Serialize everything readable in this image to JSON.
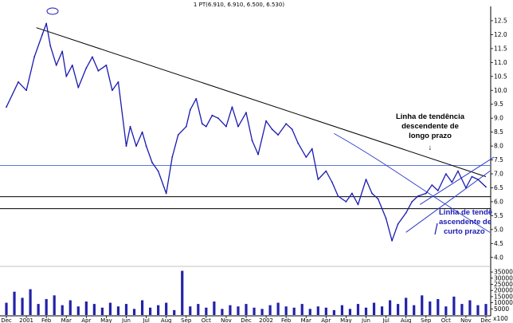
{
  "header": {
    "title": "1 PT(6.910, 6.910, 6.500, 6.530)"
  },
  "chart_data": {
    "type": "line",
    "price_axis": {
      "ylim": [
        3.85,
        12.9
      ],
      "ticks": [
        4.0,
        4.5,
        5.0,
        5.5,
        6.0,
        6.5,
        7.0,
        7.5,
        8.0,
        8.5,
        9.0,
        9.5,
        10.0,
        10.5,
        11.0,
        11.5,
        12.0,
        12.5
      ],
      "tick_labels": [
        "4.0",
        "4.5",
        "5.0",
        "5.5",
        "6.0",
        "6.5",
        "7.0",
        "7.5",
        "8.0",
        "8.5",
        "9.0",
        "9.5",
        "10.0",
        "10.5",
        "11.0",
        "11.5",
        "12.0",
        "12.5"
      ]
    },
    "volume_axis": {
      "ylim": [
        0,
        37000
      ],
      "ticks": [
        5000,
        10000,
        15000,
        20000,
        25000,
        30000,
        35000
      ],
      "tick_labels": [
        "5000",
        "10000",
        "15000",
        "20000",
        "25000",
        "30000",
        "35000"
      ],
      "unit_label": "x100"
    },
    "x_axis": {
      "months": [
        "Dec",
        "2001",
        "Feb",
        "Mar",
        "Apr",
        "May",
        "Jun",
        "Jul",
        "Aug",
        "Sep",
        "Oct",
        "Nov",
        "Dec",
        "2002",
        "Feb",
        "Mar",
        "Apr",
        "May",
        "Jun",
        "Jul",
        "Aug",
        "Sep",
        "Oct",
        "Nov",
        "Dec"
      ]
    },
    "price_series": {
      "x": [
        0.0,
        0.6,
        1.0,
        1.4,
        1.8,
        2.0,
        2.2,
        2.5,
        2.8,
        3.0,
        3.3,
        3.6,
        4.0,
        4.3,
        4.6,
        5.0,
        5.3,
        5.6,
        6.0,
        6.2,
        6.5,
        6.8,
        7.0,
        7.3,
        7.6,
        8.0,
        8.3,
        8.6,
        9.0,
        9.2,
        9.5,
        9.8,
        10.0,
        10.3,
        10.6,
        11.0,
        11.3,
        11.6,
        12.0,
        12.3,
        12.6,
        13.0,
        13.3,
        13.6,
        14.0,
        14.3,
        14.6,
        15.0,
        15.3,
        15.6,
        16.0,
        16.3,
        16.6,
        17.0,
        17.3,
        17.6,
        18.0,
        18.3,
        18.6,
        19.0,
        19.3,
        19.6,
        20.0,
        20.3,
        20.6,
        21.0,
        21.3,
        21.6,
        22.0,
        22.3,
        22.6,
        23.0,
        23.3,
        23.6,
        24.0
      ],
      "y": [
        9.4,
        10.3,
        10.0,
        11.2,
        12.0,
        12.4,
        11.6,
        10.9,
        11.4,
        10.5,
        10.9,
        10.1,
        10.8,
        11.2,
        10.7,
        10.9,
        10.0,
        10.3,
        8.0,
        8.7,
        8.0,
        8.5,
        8.0,
        7.4,
        7.1,
        6.3,
        7.6,
        8.4,
        8.7,
        9.3,
        9.7,
        8.8,
        8.7,
        9.1,
        9.0,
        8.7,
        9.4,
        8.7,
        9.2,
        8.2,
        7.7,
        8.9,
        8.6,
        8.4,
        8.8,
        8.6,
        8.1,
        7.6,
        7.9,
        6.8,
        7.1,
        6.7,
        6.2,
        6.0,
        6.3,
        5.9,
        6.8,
        6.3,
        6.1,
        5.4,
        4.6,
        5.2,
        5.6,
        6.0,
        6.2,
        6.3,
        6.6,
        6.4,
        7.0,
        6.7,
        7.1,
        6.5,
        6.9,
        6.8,
        6.53
      ]
    },
    "volume_series": {
      "x": [
        0,
        0.4,
        0.8,
        1.2,
        1.6,
        2.0,
        2.4,
        2.8,
        3.2,
        3.6,
        4.0,
        4.4,
        4.8,
        5.2,
        5.6,
        6.0,
        6.4,
        6.8,
        7.2,
        7.6,
        8.0,
        8.4,
        8.8,
        9.2,
        9.6,
        10.0,
        10.4,
        10.8,
        11.2,
        11.6,
        12.0,
        12.4,
        12.8,
        13.2,
        13.6,
        14.0,
        14.4,
        14.8,
        15.2,
        15.6,
        16.0,
        16.4,
        16.8,
        17.2,
        17.6,
        18.0,
        18.4,
        18.8,
        19.2,
        19.6,
        20.0,
        20.4,
        20.8,
        21.2,
        21.6,
        22.0,
        22.4,
        22.8,
        23.2,
        23.6,
        24.0
      ],
      "values": [
        10000,
        19000,
        14000,
        21000,
        9000,
        13000,
        16000,
        8000,
        12000,
        7000,
        11000,
        9000,
        6000,
        10000,
        7000,
        9000,
        5000,
        12000,
        6000,
        8000,
        10000,
        4000,
        36000,
        7000,
        9000,
        6000,
        11000,
        5000,
        8000,
        7000,
        9000,
        6000,
        5000,
        8000,
        10000,
        7000,
        6000,
        9000,
        5000,
        7000,
        6000,
        4000,
        8000,
        5000,
        9000,
        6000,
        10000,
        7000,
        12000,
        9000,
        14000,
        8000,
        16000,
        11000,
        13000,
        7000,
        15000,
        9000,
        12000,
        8000,
        9000
      ]
    },
    "annotations": [
      {
        "name": "long-term-label",
        "lines": [
          "Linha de tendência",
          "descendente de",
          "longo prazo"
        ],
        "arrow": "↓",
        "color": "#000000"
      },
      {
        "name": "short-term-label",
        "lines": [
          "Linha de tendê",
          "ascendente de",
          "curto prazo"
        ],
        "color": "#1a1ab0"
      }
    ],
    "long_trendline": {
      "x": [
        1.5,
        24.0
      ],
      "y": [
        12.25,
        6.9
      ]
    },
    "short_channel": {
      "lower": {
        "x": [
          20.0,
          24.2
        ],
        "y": [
          4.9,
          7.1
        ]
      },
      "upper": {
        "x": [
          20.7,
          24.4
        ],
        "y": [
          5.9,
          7.6
        ]
      }
    },
    "curved_trendline": {
      "x": [
        16.4,
        19.0,
        21.0,
        24.2
      ],
      "y": [
        8.45,
        7.4,
        6.3,
        4.9
      ]
    },
    "horizontal_lines": [
      {
        "y": 7.3,
        "color": "#5b7bd5"
      },
      {
        "y": 6.18,
        "color": "#000000"
      },
      {
        "y": 5.75,
        "color": "#000000"
      }
    ],
    "grid": false,
    "colors": {
      "price": "#1a1ab0",
      "volume": "#2222aa",
      "trend": "#000000",
      "channel": "#2a3acc",
      "hline": "#5b7bd5"
    }
  }
}
